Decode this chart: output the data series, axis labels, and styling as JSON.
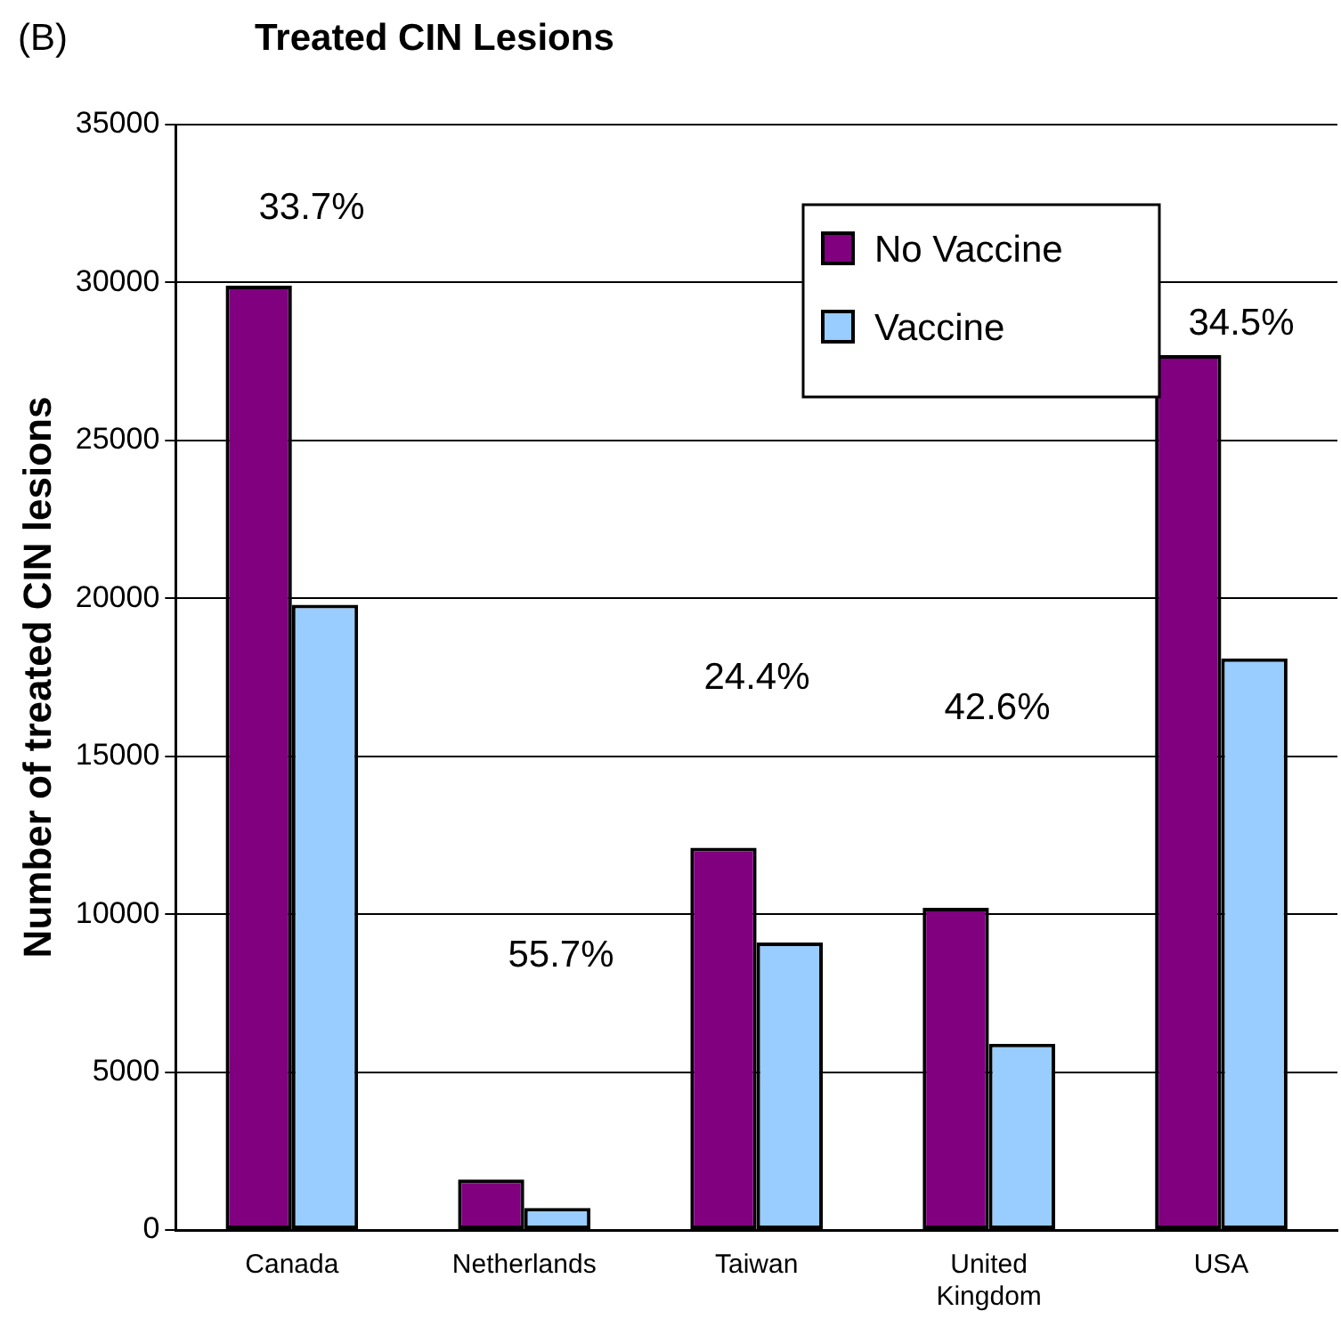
{
  "chart_data": {
    "type": "bar",
    "title": "Treated CIN Lesions",
    "ylabel": "Number of treated CIN lesions",
    "categories": [
      "Canada",
      "Netherlands",
      "Taiwan",
      "United Kingdom",
      "USA"
    ],
    "series": [
      {
        "name": "No Vaccine",
        "color": "#800080",
        "values": [
          29900,
          1600,
          12100,
          10200,
          27700
        ]
      },
      {
        "name": "Vaccine",
        "color": "#99ccff",
        "values": [
          19800,
          700,
          9100,
          5900,
          18100
        ]
      }
    ],
    "ylim": [
      0,
      35000
    ],
    "yticks": [
      0,
      5000,
      10000,
      15000,
      20000,
      25000,
      30000,
      35000
    ],
    "grid": "y",
    "legend": "top right",
    "annotations": [
      "(B)",
      "33.7%",
      "55.7%",
      "24.4%",
      "42.6%",
      "34.5%"
    ]
  }
}
